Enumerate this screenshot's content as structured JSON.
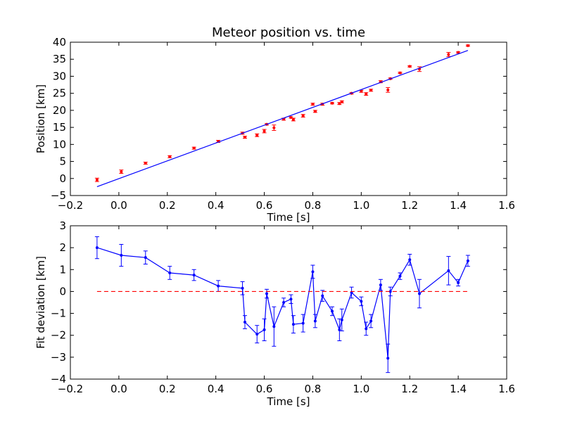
{
  "chart_data": [
    {
      "type": "scatter",
      "title": "Meteor position vs. time",
      "xlabel": "Time [s]",
      "ylabel": "Position [km]",
      "xlim": [
        -0.2,
        1.6
      ],
      "ylim": [
        -5,
        40
      ],
      "xticks": [
        "−0.2",
        "0.0",
        "0.2",
        "0.4",
        "0.6",
        "0.8",
        "1.0",
        "1.2",
        "1.4",
        "1.6"
      ],
      "yticks": [
        "−5",
        "0",
        "5",
        "10",
        "15",
        "20",
        "25",
        "30",
        "35",
        "40"
      ],
      "grid": false,
      "series": [
        {
          "kind": "errorbar-points",
          "color": "#ff0000",
          "points": [
            {
              "x": -0.09,
              "y": -0.4,
              "err": 0.5
            },
            {
              "x": 0.01,
              "y": 2.0,
              "err": 0.5
            },
            {
              "x": 0.11,
              "y": 4.5,
              "err": 0.3
            },
            {
              "x": 0.21,
              "y": 6.4,
              "err": 0.3
            },
            {
              "x": 0.31,
              "y": 8.9,
              "err": 0.3
            },
            {
              "x": 0.41,
              "y": 10.9,
              "err": 0.3
            },
            {
              "x": 0.51,
              "y": 13.3,
              "err": 0.3
            },
            {
              "x": 0.52,
              "y": 12.1,
              "err": 0.3
            },
            {
              "x": 0.57,
              "y": 12.7,
              "err": 0.4
            },
            {
              "x": 0.6,
              "y": 13.9,
              "err": 0.5
            },
            {
              "x": 0.61,
              "y": 15.9,
              "err": 0.2
            },
            {
              "x": 0.64,
              "y": 14.9,
              "err": 0.8
            },
            {
              "x": 0.68,
              "y": 17.4,
              "err": 0.3
            },
            {
              "x": 0.71,
              "y": 17.9,
              "err": 0.2
            },
            {
              "x": 0.72,
              "y": 17.3,
              "err": 0.4
            },
            {
              "x": 0.76,
              "y": 18.4,
              "err": 0.4
            },
            {
              "x": 0.8,
              "y": 21.8,
              "err": 0.3
            },
            {
              "x": 0.81,
              "y": 19.7,
              "err": 0.3
            },
            {
              "x": 0.84,
              "y": 21.8,
              "err": 0.3
            },
            {
              "x": 0.88,
              "y": 22.1,
              "err": 0.2
            },
            {
              "x": 0.91,
              "y": 22.0,
              "err": 0.3
            },
            {
              "x": 0.92,
              "y": 22.5,
              "err": 0.3
            },
            {
              "x": 0.96,
              "y": 25.0,
              "err": 0.2
            },
            {
              "x": 1.0,
              "y": 25.6,
              "err": 0.3
            },
            {
              "x": 1.02,
              "y": 24.8,
              "err": 0.4
            },
            {
              "x": 1.04,
              "y": 25.9,
              "err": 0.3
            },
            {
              "x": 1.08,
              "y": 28.4,
              "err": 0.3
            },
            {
              "x": 1.11,
              "y": 26.0,
              "err": 0.7
            },
            {
              "x": 1.12,
              "y": 29.3,
              "err": 0.2
            },
            {
              "x": 1.16,
              "y": 31.0,
              "err": 0.2
            },
            {
              "x": 1.2,
              "y": 32.9,
              "err": 0.2
            },
            {
              "x": 1.24,
              "y": 32.1,
              "err": 0.7
            },
            {
              "x": 1.36,
              "y": 36.4,
              "err": 0.6
            },
            {
              "x": 1.4,
              "y": 37.0,
              "err": 0.2
            },
            {
              "x": 1.44,
              "y": 39.0,
              "err": 0.2
            }
          ]
        },
        {
          "kind": "fit-line",
          "color": "#0000ff",
          "x": [
            -0.09,
            1.44
          ],
          "y": [
            -2.4,
            37.6
          ]
        }
      ]
    },
    {
      "type": "line",
      "xlabel": "Time [s]",
      "ylabel": "Fit deviation [km]",
      "xlim": [
        -0.2,
        1.6
      ],
      "ylim": [
        -4,
        3
      ],
      "xticks": [
        "−0.2",
        "0.0",
        "0.2",
        "0.4",
        "0.6",
        "0.8",
        "1.0",
        "1.2",
        "1.4",
        "1.6"
      ],
      "yticks": [
        "−4",
        "−3",
        "−2",
        "−1",
        "0",
        "1",
        "2",
        "3"
      ],
      "grid": false,
      "series": [
        {
          "kind": "errorbar-line",
          "color": "#0000ff",
          "points": [
            {
              "x": -0.09,
              "y": 2.0,
              "err": 0.5
            },
            {
              "x": 0.01,
              "y": 1.65,
              "err": 0.5
            },
            {
              "x": 0.11,
              "y": 1.55,
              "err": 0.3
            },
            {
              "x": 0.21,
              "y": 0.85,
              "err": 0.3
            },
            {
              "x": 0.31,
              "y": 0.75,
              "err": 0.25
            },
            {
              "x": 0.41,
              "y": 0.25,
              "err": 0.25
            },
            {
              "x": 0.51,
              "y": 0.15,
              "err": 0.3
            },
            {
              "x": 0.52,
              "y": -1.4,
              "err": 0.3
            },
            {
              "x": 0.57,
              "y": -1.95,
              "err": 0.4
            },
            {
              "x": 0.6,
              "y": -1.75,
              "err": 0.5
            },
            {
              "x": 0.61,
              "y": -0.1,
              "err": 0.2
            },
            {
              "x": 0.64,
              "y": -1.6,
              "err": 0.9
            },
            {
              "x": 0.68,
              "y": -0.5,
              "err": 0.2
            },
            {
              "x": 0.71,
              "y": -0.35,
              "err": 0.2
            },
            {
              "x": 0.72,
              "y": -1.5,
              "err": 0.4
            },
            {
              "x": 0.76,
              "y": -1.45,
              "err": 0.4
            },
            {
              "x": 0.8,
              "y": 0.9,
              "err": 0.3
            },
            {
              "x": 0.81,
              "y": -1.35,
              "err": 0.3
            },
            {
              "x": 0.84,
              "y": -0.2,
              "err": 0.25
            },
            {
              "x": 0.88,
              "y": -0.9,
              "err": 0.2
            },
            {
              "x": 0.91,
              "y": -1.75,
              "err": 0.5
            },
            {
              "x": 0.92,
              "y": -1.3,
              "err": 0.5
            },
            {
              "x": 0.96,
              "y": -0.05,
              "err": 0.25
            },
            {
              "x": 1.0,
              "y": -0.45,
              "err": 0.2
            },
            {
              "x": 1.02,
              "y": -1.7,
              "err": 0.3
            },
            {
              "x": 1.04,
              "y": -1.35,
              "err": 0.3
            },
            {
              "x": 1.08,
              "y": 0.3,
              "err": 0.25
            },
            {
              "x": 1.11,
              "y": -3.05,
              "err": 0.65
            },
            {
              "x": 1.12,
              "y": 0.0,
              "err": 0.2
            },
            {
              "x": 1.16,
              "y": 0.7,
              "err": 0.15
            },
            {
              "x": 1.2,
              "y": 1.45,
              "err": 0.25
            },
            {
              "x": 1.24,
              "y": -0.1,
              "err": 0.65
            },
            {
              "x": 1.36,
              "y": 0.95,
              "err": 0.65
            },
            {
              "x": 1.4,
              "y": 0.4,
              "err": 0.15
            },
            {
              "x": 1.44,
              "y": 1.4,
              "err": 0.25
            }
          ]
        },
        {
          "kind": "zero-line",
          "style": "dashed",
          "color": "#ff0000",
          "x": [
            -0.09,
            1.44
          ],
          "y": [
            0,
            0
          ]
        }
      ]
    }
  ]
}
